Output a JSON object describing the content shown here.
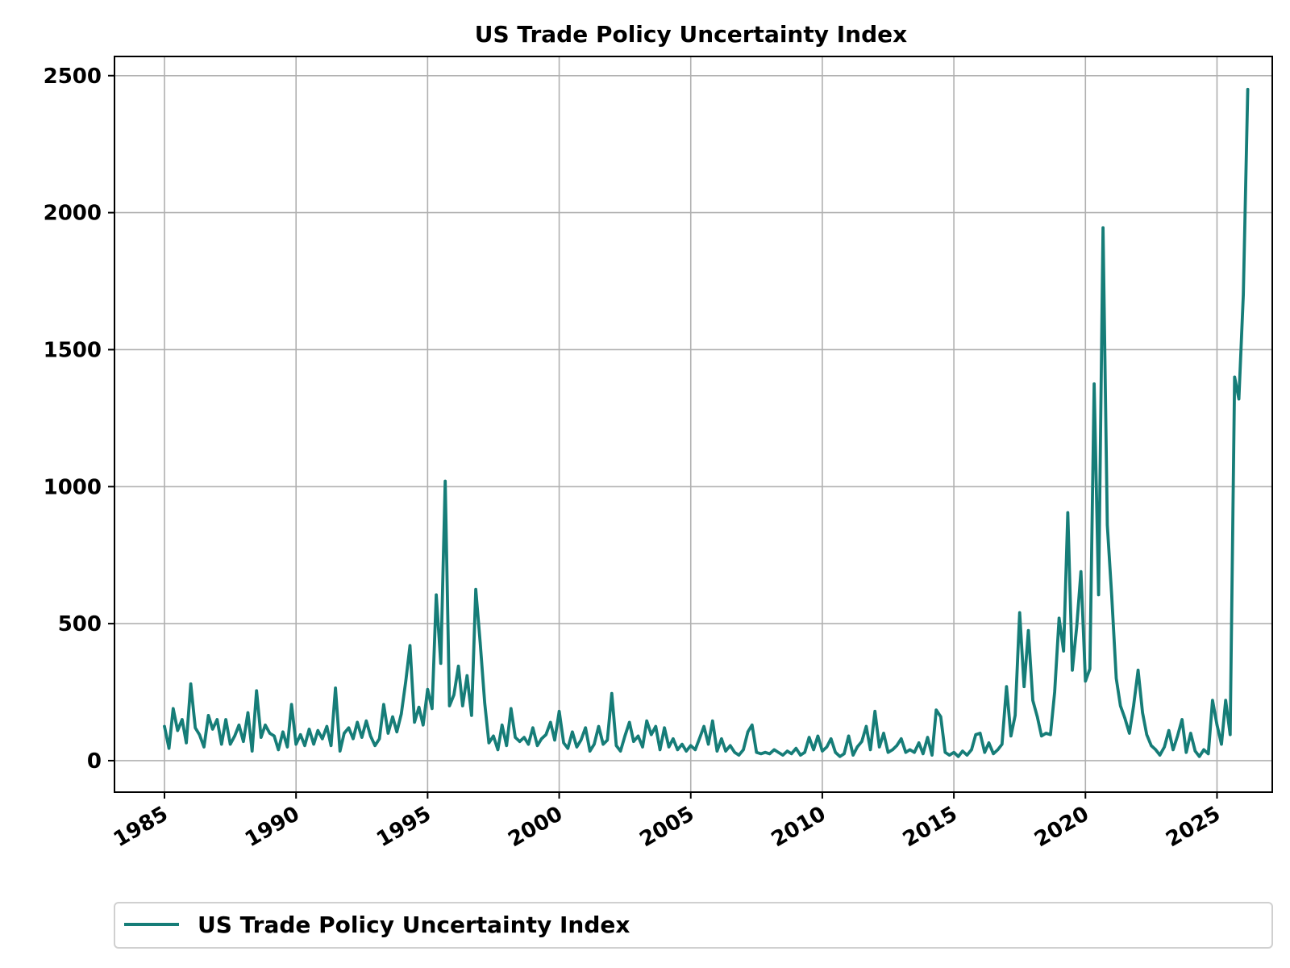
{
  "chart_data": {
    "type": "line",
    "title": "US Trade Policy Uncertainty Index",
    "xlabel": "",
    "ylabel": "",
    "x_ticks": [
      "1985",
      "1990",
      "1995",
      "2000",
      "2005",
      "2010",
      "2015",
      "2020",
      "2025"
    ],
    "y_ticks": [
      "0",
      "500",
      "1000",
      "1500",
      "2000",
      "2500"
    ],
    "xlim": [
      1983.1,
      2027.1
    ],
    "ylim": [
      -115,
      2570
    ],
    "grid": true,
    "legend_position": "below",
    "series": [
      {
        "name": "US Trade Policy Uncertainty Index",
        "color": "#167d78",
        "points": [
          [
            1985.0,
            125
          ],
          [
            1985.17,
            45
          ],
          [
            1985.33,
            190
          ],
          [
            1985.5,
            110
          ],
          [
            1985.67,
            150
          ],
          [
            1985.83,
            65
          ],
          [
            1986.0,
            280
          ],
          [
            1986.17,
            120
          ],
          [
            1986.33,
            95
          ],
          [
            1986.5,
            50
          ],
          [
            1986.67,
            165
          ],
          [
            1986.83,
            115
          ],
          [
            1987.0,
            150
          ],
          [
            1987.17,
            60
          ],
          [
            1987.33,
            150
          ],
          [
            1987.5,
            60
          ],
          [
            1987.67,
            90
          ],
          [
            1987.83,
            130
          ],
          [
            1988.0,
            70
          ],
          [
            1988.17,
            175
          ],
          [
            1988.33,
            35
          ],
          [
            1988.5,
            255
          ],
          [
            1988.67,
            85
          ],
          [
            1988.83,
            130
          ],
          [
            1989.0,
            100
          ],
          [
            1989.17,
            90
          ],
          [
            1989.33,
            40
          ],
          [
            1989.5,
            105
          ],
          [
            1989.67,
            50
          ],
          [
            1989.83,
            205
          ],
          [
            1990.0,
            60
          ],
          [
            1990.17,
            95
          ],
          [
            1990.33,
            55
          ],
          [
            1990.5,
            115
          ],
          [
            1990.67,
            60
          ],
          [
            1990.83,
            110
          ],
          [
            1991.0,
            80
          ],
          [
            1991.17,
            125
          ],
          [
            1991.33,
            55
          ],
          [
            1991.5,
            265
          ],
          [
            1991.67,
            35
          ],
          [
            1991.83,
            100
          ],
          [
            1992.0,
            120
          ],
          [
            1992.17,
            80
          ],
          [
            1992.33,
            140
          ],
          [
            1992.5,
            85
          ],
          [
            1992.67,
            145
          ],
          [
            1992.83,
            90
          ],
          [
            1993.0,
            55
          ],
          [
            1993.17,
            80
          ],
          [
            1993.33,
            205
          ],
          [
            1993.5,
            100
          ],
          [
            1993.67,
            160
          ],
          [
            1993.83,
            105
          ],
          [
            1994.0,
            170
          ],
          [
            1994.17,
            290
          ],
          [
            1994.33,
            420
          ],
          [
            1994.5,
            140
          ],
          [
            1994.67,
            195
          ],
          [
            1994.83,
            130
          ],
          [
            1995.0,
            260
          ],
          [
            1995.17,
            190
          ],
          [
            1995.33,
            605
          ],
          [
            1995.5,
            355
          ],
          [
            1995.67,
            1020
          ],
          [
            1995.83,
            200
          ],
          [
            1996.0,
            240
          ],
          [
            1996.17,
            345
          ],
          [
            1996.33,
            200
          ],
          [
            1996.5,
            310
          ],
          [
            1996.67,
            165
          ],
          [
            1996.83,
            625
          ],
          [
            1997.0,
            430
          ],
          [
            1997.17,
            210
          ],
          [
            1997.33,
            65
          ],
          [
            1997.5,
            90
          ],
          [
            1997.67,
            40
          ],
          [
            1997.83,
            130
          ],
          [
            1998.0,
            55
          ],
          [
            1998.17,
            190
          ],
          [
            1998.33,
            85
          ],
          [
            1998.5,
            70
          ],
          [
            1998.67,
            85
          ],
          [
            1998.83,
            60
          ],
          [
            1999.0,
            120
          ],
          [
            1999.17,
            55
          ],
          [
            1999.33,
            80
          ],
          [
            1999.5,
            95
          ],
          [
            1999.67,
            140
          ],
          [
            1999.83,
            75
          ],
          [
            2000.0,
            180
          ],
          [
            2000.17,
            65
          ],
          [
            2000.33,
            45
          ],
          [
            2000.5,
            105
          ],
          [
            2000.67,
            50
          ],
          [
            2000.83,
            75
          ],
          [
            2001.0,
            120
          ],
          [
            2001.17,
            35
          ],
          [
            2001.33,
            60
          ],
          [
            2001.5,
            125
          ],
          [
            2001.67,
            60
          ],
          [
            2001.83,
            75
          ],
          [
            2002.0,
            245
          ],
          [
            2002.17,
            55
          ],
          [
            2002.33,
            35
          ],
          [
            2002.5,
            90
          ],
          [
            2002.67,
            140
          ],
          [
            2002.83,
            70
          ],
          [
            2003.0,
            90
          ],
          [
            2003.17,
            50
          ],
          [
            2003.33,
            145
          ],
          [
            2003.5,
            95
          ],
          [
            2003.67,
            125
          ],
          [
            2003.83,
            40
          ],
          [
            2004.0,
            120
          ],
          [
            2004.17,
            50
          ],
          [
            2004.33,
            80
          ],
          [
            2004.5,
            40
          ],
          [
            2004.67,
            60
          ],
          [
            2004.83,
            35
          ],
          [
            2005.0,
            55
          ],
          [
            2005.17,
            40
          ],
          [
            2005.33,
            80
          ],
          [
            2005.5,
            125
          ],
          [
            2005.67,
            60
          ],
          [
            2005.83,
            145
          ],
          [
            2006.0,
            35
          ],
          [
            2006.17,
            80
          ],
          [
            2006.33,
            35
          ],
          [
            2006.5,
            55
          ],
          [
            2006.67,
            30
          ],
          [
            2006.83,
            20
          ],
          [
            2007.0,
            40
          ],
          [
            2007.17,
            105
          ],
          [
            2007.33,
            130
          ],
          [
            2007.5,
            30
          ],
          [
            2007.67,
            25
          ],
          [
            2007.83,
            30
          ],
          [
            2008.0,
            25
          ],
          [
            2008.17,
            40
          ],
          [
            2008.33,
            30
          ],
          [
            2008.5,
            20
          ],
          [
            2008.67,
            35
          ],
          [
            2008.83,
            25
          ],
          [
            2009.0,
            45
          ],
          [
            2009.17,
            20
          ],
          [
            2009.33,
            30
          ],
          [
            2009.5,
            85
          ],
          [
            2009.67,
            40
          ],
          [
            2009.83,
            90
          ],
          [
            2010.0,
            35
          ],
          [
            2010.17,
            50
          ],
          [
            2010.33,
            80
          ],
          [
            2010.5,
            30
          ],
          [
            2010.67,
            15
          ],
          [
            2010.83,
            25
          ],
          [
            2011.0,
            90
          ],
          [
            2011.17,
            20
          ],
          [
            2011.33,
            50
          ],
          [
            2011.5,
            70
          ],
          [
            2011.67,
            125
          ],
          [
            2011.83,
            40
          ],
          [
            2012.0,
            180
          ],
          [
            2012.17,
            50
          ],
          [
            2012.33,
            100
          ],
          [
            2012.5,
            30
          ],
          [
            2012.67,
            40
          ],
          [
            2012.83,
            55
          ],
          [
            2013.0,
            80
          ],
          [
            2013.17,
            30
          ],
          [
            2013.33,
            40
          ],
          [
            2013.5,
            30
          ],
          [
            2013.67,
            65
          ],
          [
            2013.83,
            25
          ],
          [
            2014.0,
            85
          ],
          [
            2014.17,
            20
          ],
          [
            2014.33,
            185
          ],
          [
            2014.5,
            160
          ],
          [
            2014.67,
            30
          ],
          [
            2014.83,
            20
          ],
          [
            2015.0,
            30
          ],
          [
            2015.17,
            15
          ],
          [
            2015.33,
            35
          ],
          [
            2015.5,
            20
          ],
          [
            2015.67,
            40
          ],
          [
            2015.83,
            95
          ],
          [
            2016.0,
            100
          ],
          [
            2016.17,
            30
          ],
          [
            2016.33,
            65
          ],
          [
            2016.5,
            25
          ],
          [
            2016.67,
            40
          ],
          [
            2016.83,
            60
          ],
          [
            2017.0,
            270
          ],
          [
            2017.17,
            90
          ],
          [
            2017.33,
            165
          ],
          [
            2017.5,
            540
          ],
          [
            2017.67,
            270
          ],
          [
            2017.83,
            475
          ],
          [
            2018.0,
            220
          ],
          [
            2018.17,
            160
          ],
          [
            2018.33,
            90
          ],
          [
            2018.5,
            100
          ],
          [
            2018.67,
            95
          ],
          [
            2018.83,
            250
          ],
          [
            2019.0,
            520
          ],
          [
            2019.17,
            400
          ],
          [
            2019.33,
            905
          ],
          [
            2019.5,
            330
          ],
          [
            2019.67,
            490
          ],
          [
            2019.83,
            690
          ],
          [
            2020.0,
            290
          ],
          [
            2020.17,
            335
          ],
          [
            2020.33,
            1375
          ],
          [
            2020.5,
            605
          ],
          [
            2020.67,
            1945
          ],
          [
            2020.83,
            860
          ],
          [
            2021.0,
            600
          ],
          [
            2021.17,
            300
          ],
          [
            2021.33,
            200
          ],
          [
            2021.5,
            155
          ],
          [
            2021.67,
            100
          ],
          [
            2021.83,
            200
          ],
          [
            2022.0,
            330
          ],
          [
            2022.17,
            175
          ],
          [
            2022.33,
            95
          ],
          [
            2022.5,
            55
          ],
          [
            2022.67,
            40
          ],
          [
            2022.83,
            20
          ],
          [
            2023.0,
            50
          ],
          [
            2023.17,
            110
          ],
          [
            2023.33,
            40
          ],
          [
            2023.5,
            90
          ],
          [
            2023.67,
            150
          ],
          [
            2023.83,
            30
          ],
          [
            2024.0,
            100
          ],
          [
            2024.17,
            35
          ],
          [
            2024.33,
            15
          ],
          [
            2024.5,
            40
          ],
          [
            2024.67,
            25
          ],
          [
            2024.83,
            220
          ],
          [
            2025.0,
            130
          ],
          [
            2025.17,
            60
          ],
          [
            2025.33,
            220
          ],
          [
            2025.5,
            95
          ],
          [
            2025.67,
            1400
          ],
          [
            2025.83,
            1320
          ],
          [
            2026.0,
            1700
          ],
          [
            2026.17,
            2450
          ]
        ]
      }
    ]
  }
}
